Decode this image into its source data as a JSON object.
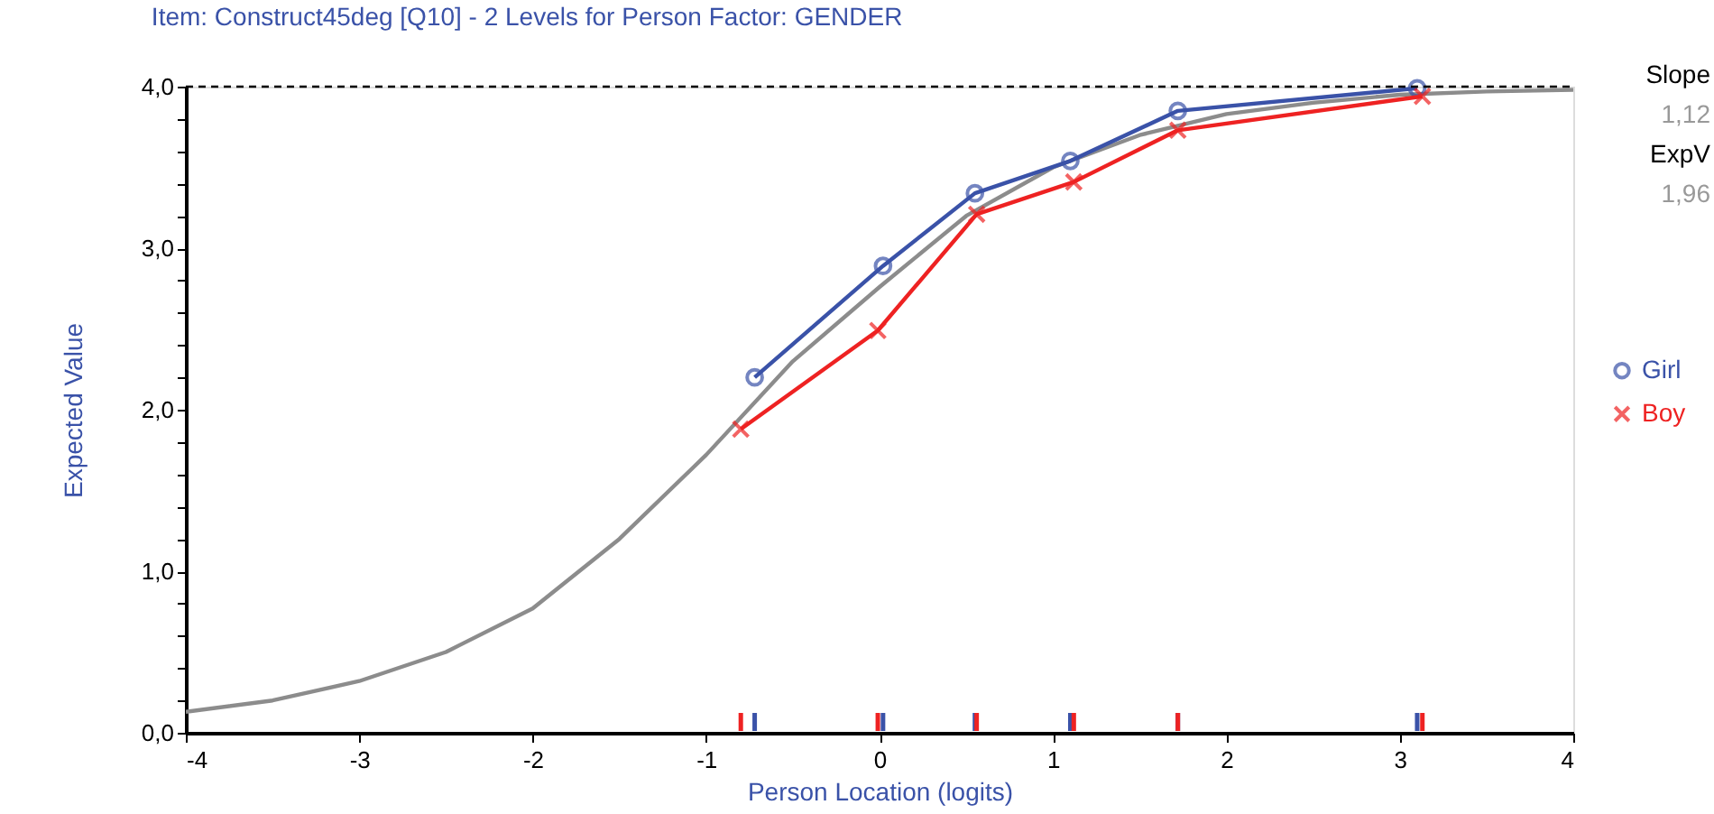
{
  "chart_data": {
    "type": "line",
    "title": "Item: Construct45deg [Q10] - 2 Levels for Person Factor: GENDER",
    "xlabel": "Person Location (logits)",
    "ylabel": "Expected Value",
    "series": [
      {
        "color": "#8c8c8c",
        "marker": "none",
        "x": [
          -4,
          -3.5,
          -3,
          -2.5,
          -2,
          -1.5,
          -1,
          -0.5,
          0,
          0.5,
          1,
          1.5,
          2,
          2.5,
          3,
          3.5,
          4
        ],
        "values": [
          0.13,
          0.2,
          0.32,
          0.5,
          0.77,
          1.2,
          1.72,
          2.3,
          2.76,
          3.2,
          3.5,
          3.7,
          3.83,
          3.9,
          3.95,
          3.97,
          3.98
        ]
      },
      {
        "name": "Girl",
        "color": "#3a52a8",
        "marker": "circle",
        "x": [
          -0.72,
          0.02,
          0.55,
          1.1,
          1.72,
          3.1
        ],
        "values": [
          2.2,
          2.89,
          3.34,
          3.54,
          3.85,
          3.99
        ]
      },
      {
        "name": "Boy",
        "color": "#ee2222",
        "marker": "cross",
        "x": [
          -0.8,
          -0.01,
          0.56,
          1.12,
          1.72,
          3.13
        ],
        "values": [
          1.88,
          2.49,
          3.21,
          3.41,
          3.73,
          3.94
        ]
      }
    ],
    "xlim": [
      -4,
      4
    ],
    "xticks": [
      -4,
      -3,
      -2,
      -1,
      0,
      1,
      2,
      3,
      4
    ],
    "ylim": [
      0,
      4
    ],
    "yticks": [
      {
        "value": 0,
        "label": "0,0"
      },
      {
        "value": 0.2,
        "label": null
      },
      {
        "value": 0.4,
        "label": null
      },
      {
        "value": 0.6,
        "label": null
      },
      {
        "value": 0.8,
        "label": null
      },
      {
        "value": 1,
        "label": "1,0"
      },
      {
        "value": 1.2,
        "label": null
      },
      {
        "value": 1.4,
        "label": null
      },
      {
        "value": 1.6,
        "label": null
      },
      {
        "value": 1.8,
        "label": null
      },
      {
        "value": 2,
        "label": "2,0"
      },
      {
        "value": 2.2,
        "label": null
      },
      {
        "value": 2.4,
        "label": null
      },
      {
        "value": 2.6,
        "label": null
      },
      {
        "value": 2.8,
        "label": null
      },
      {
        "value": 3,
        "label": "3,0"
      },
      {
        "value": 3.2,
        "label": null
      },
      {
        "value": 3.4,
        "label": null
      },
      {
        "value": 3.6,
        "label": null
      },
      {
        "value": 3.8,
        "label": null
      },
      {
        "value": 4,
        "label": "4,0"
      }
    ],
    "ref_lines": [
      {
        "axis": "y",
        "value": 4,
        "color": "#000000",
        "line_style": "dashed"
      }
    ],
    "annotations": [
      "Slope",
      "1,12",
      "ExpV",
      "1,96"
    ],
    "legend": "right",
    "grid": false,
    "line_style": "solid"
  }
}
